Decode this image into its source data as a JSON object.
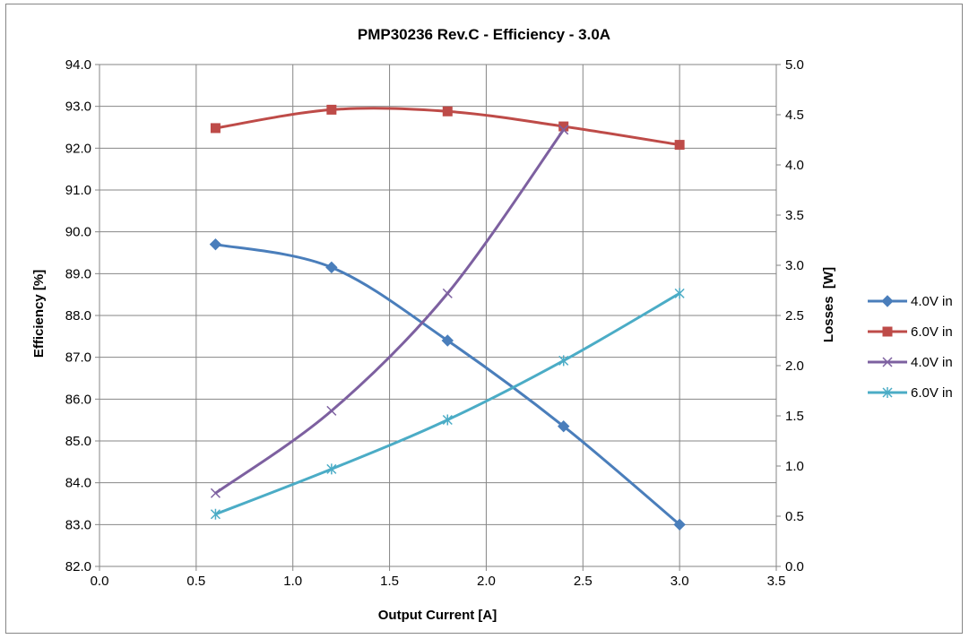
{
  "chart_data": {
    "type": "line",
    "title": "PMP30236 Rev.C - Efficiency - 3.0A",
    "xlabel": "Output Current [A]",
    "ylabel": "Efficiency [%]",
    "y2label": "Losses  [W]",
    "xlim": [
      0.0,
      3.5
    ],
    "ylim": [
      82.0,
      94.0
    ],
    "y2lim": [
      0.0,
      5.0
    ],
    "x_ticks": [
      "0.0",
      "0.5",
      "1.0",
      "1.5",
      "2.0",
      "2.5",
      "3.0",
      "3.5"
    ],
    "y_ticks": [
      "82.0",
      "83.0",
      "84.0",
      "85.0",
      "86.0",
      "87.0",
      "88.0",
      "89.0",
      "90.0",
      "91.0",
      "92.0",
      "93.0",
      "94.0"
    ],
    "y2_ticks": [
      "0.0",
      "0.5",
      "1.0",
      "1.5",
      "2.0",
      "2.5",
      "3.0",
      "3.5",
      "4.0",
      "4.5",
      "5.0"
    ],
    "grid": true,
    "legend_position": "right",
    "series": [
      {
        "name": "4.0V in",
        "axis": "left",
        "marker": "diamond",
        "color": "#4A7EBB",
        "x": [
          0.6,
          1.2,
          1.8,
          2.4,
          3.0
        ],
        "y": [
          89.7,
          89.15,
          87.4,
          85.35,
          83.0
        ]
      },
      {
        "name": "6.0V in",
        "axis": "left",
        "marker": "square",
        "color": "#BE4B48",
        "x": [
          0.6,
          1.2,
          1.8,
          2.4,
          3.0
        ],
        "y": [
          92.48,
          92.92,
          92.88,
          92.52,
          92.08
        ]
      },
      {
        "name": "4.0V in",
        "axis": "right",
        "marker": "x",
        "color": "#7D60A0",
        "x": [
          0.6,
          1.2,
          1.8,
          2.4,
          3.0
        ],
        "y": [
          0.73,
          1.55,
          2.72,
          4.35,
          null
        ]
      },
      {
        "name": "6.0V in",
        "axis": "right",
        "marker": "asterisk",
        "color": "#4BACC6",
        "x": [
          0.6,
          1.2,
          1.8,
          2.4,
          3.0
        ],
        "y": [
          0.52,
          0.97,
          1.46,
          2.05,
          2.72
        ]
      }
    ]
  }
}
